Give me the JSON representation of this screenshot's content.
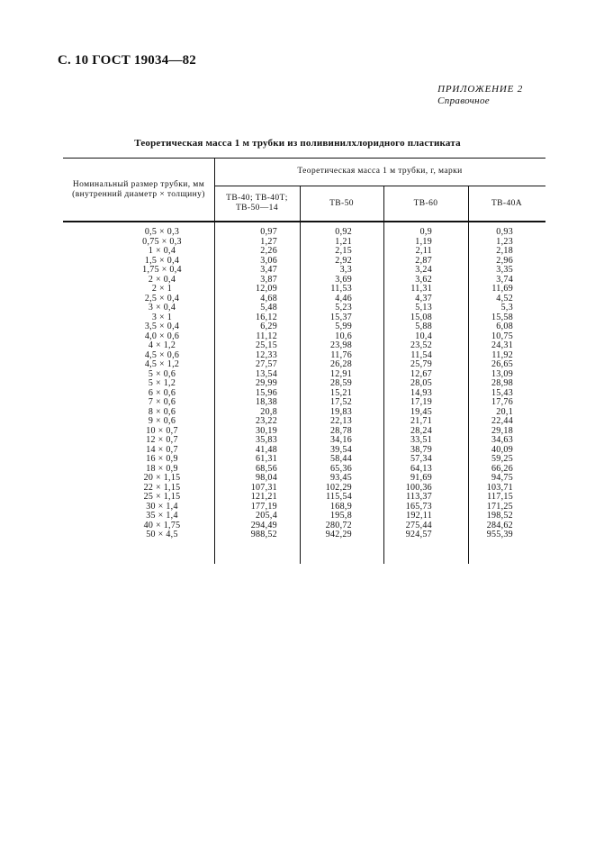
{
  "header": {
    "page_ref": "С. 10 ГОСТ 19034—82"
  },
  "appendix": {
    "label": "ПРИЛОЖЕНИЕ 2",
    "note": "Справочное"
  },
  "table": {
    "title": "Теоретическая масса 1 м трубки из поливинилхлоридного пластиката",
    "size_header_line1": "Номинальный размер трубки, мм",
    "size_header_line2": "(внутренний диаметр × толщину)",
    "mass_header": "Теоретическая масса 1 м трубки, г, марки",
    "grades": [
      "ТВ-40; ТВ-40Т;",
      "ТВ-50—14",
      "ТВ-50",
      "ТВ-60",
      "ТВ-40А"
    ],
    "rows": [
      [
        "0,5 × 0,3",
        "0,97",
        "0,92",
        "0,9",
        "0,93"
      ],
      [
        "0,75 × 0,3",
        "1,27",
        "1,21",
        "1,19",
        "1,23"
      ],
      [
        "1 × 0,4",
        "2,26",
        "2,15",
        "2,11",
        "2,18"
      ],
      [
        "1,5 × 0,4",
        "3,06",
        "2,92",
        "2,87",
        "2,96"
      ],
      [
        "1,75 × 0,4",
        "3,47",
        "3,3",
        "3,24",
        "3,35"
      ],
      [
        "2 × 0,4",
        "3,87",
        "3,69",
        "3,62",
        "3,74"
      ],
      [
        "2 × 1",
        "12,09",
        "11,53",
        "11,31",
        "11,69"
      ],
      [
        "2,5 × 0,4",
        "4,68",
        "4,46",
        "4,37",
        "4,52"
      ],
      [
        "3 × 0,4",
        "5,48",
        "5,23",
        "5,13",
        "5,3"
      ],
      [
        "3 × 1",
        "16,12",
        "15,37",
        "15,08",
        "15,58"
      ],
      [
        "3,5 × 0,4",
        "6,29",
        "5,99",
        "5,88",
        "6,08"
      ],
      [
        "4,0 × 0,6",
        "11,12",
        "10,6",
        "10,4",
        "10,75"
      ],
      [
        "4 × 1,2",
        "25,15",
        "23,98",
        "23,52",
        "24,31"
      ],
      [
        "4,5 × 0,6",
        "12,33",
        "11,76",
        "11,54",
        "11,92"
      ],
      [
        "4,5 × 1,2",
        "27,57",
        "26,28",
        "25,79",
        "26,65"
      ],
      [
        "5 × 0,6",
        "13,54",
        "12,91",
        "12,67",
        "13,09"
      ],
      [
        "5 × 1,2",
        "29,99",
        "28,59",
        "28,05",
        "28,98"
      ],
      [
        "6 × 0,6",
        "15,96",
        "15,21",
        "14,93",
        "15,43"
      ],
      [
        "7 × 0,6",
        "18,38",
        "17,52",
        "17,19",
        "17,76"
      ],
      [
        "8 × 0,6",
        "20,8",
        "19,83",
        "19,45",
        "20,1"
      ],
      [
        "9 × 0,6",
        "23,22",
        "22,13",
        "21,71",
        "22,44"
      ],
      [
        "10 × 0,7",
        "30,19",
        "28,78",
        "28,24",
        "29,18"
      ],
      [
        "12 × 0,7",
        "35,83",
        "34,16",
        "33,51",
        "34,63"
      ],
      [
        "14 × 0,7",
        "41,48",
        "39,54",
        "38,79",
        "40,09"
      ],
      [
        "16 × 0,9",
        "61,31",
        "58,44",
        "57,34",
        "59,25"
      ],
      [
        "18 × 0,9",
        "68,56",
        "65,36",
        "64,13",
        "66,26"
      ],
      [
        "20 × 1,15",
        "98,04",
        "93,45",
        "91,69",
        "94,75"
      ],
      [
        "22 × 1,15",
        "107,31",
        "102,29",
        "100,36",
        "103,71"
      ],
      [
        "25 × 1,15",
        "121,21",
        "115,54",
        "113,37",
        "117,15"
      ],
      [
        "30 × 1,4",
        "177,19",
        "168,9",
        "165,73",
        "171,25"
      ],
      [
        "35 × 1,4",
        "205,4",
        "195,8",
        "192,11",
        "198,52"
      ],
      [
        "40 × 1,75",
        "294,49",
        "280,72",
        "275,44",
        "284,62"
      ],
      [
        "50 × 4,5",
        "988,52",
        "942,29",
        "924,57",
        "955,39"
      ]
    ]
  }
}
